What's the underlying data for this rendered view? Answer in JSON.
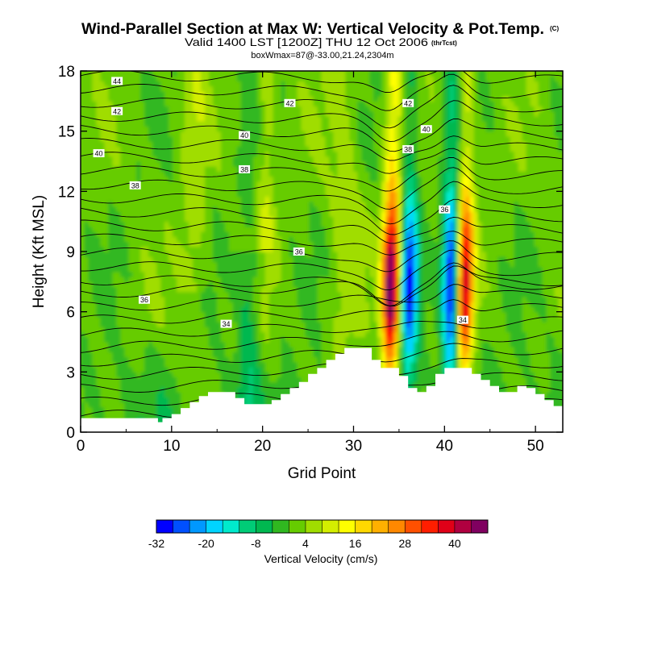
{
  "chart_data": {
    "type": "contour",
    "title": "Wind-Parallel Section at Max W: Vertical Velocity & Pot.Temp.",
    "copyright": "(C)",
    "subtitle": "Valid 1400 LST [1200Z] THU 12 Oct 2006",
    "subtitle_tag": "(thrTcst)",
    "subtitle2": "boxWmax=87@-33.00,21.24,2304m",
    "xlabel": "Grid Point",
    "ylabel": "Height (Kft MSL)",
    "xlim": [
      0,
      53
    ],
    "ylim": [
      0,
      18
    ],
    "xticks": [
      0,
      10,
      20,
      30,
      40,
      50
    ],
    "yticks": [
      0,
      3,
      6,
      9,
      12,
      15,
      18
    ],
    "colorbar": {
      "label": "Vertical Velocity (cm/s)",
      "levels": [
        -32,
        -28,
        -24,
        -20,
        -16,
        -12,
        -8,
        -4,
        0,
        4,
        8,
        12,
        16,
        20,
        24,
        28,
        32,
        36,
        40,
        44,
        48
      ],
      "tick_labels": [
        "-32",
        "-20",
        "-8",
        "4",
        "16",
        "28",
        "40"
      ],
      "tick_values": [
        -32,
        -20,
        -8,
        4,
        16,
        28,
        40
      ],
      "colors": [
        "#0000ff",
        "#0050ff",
        "#0098ff",
        "#00d4ff",
        "#00eacc",
        "#00cc77",
        "#00b850",
        "#30b820",
        "#66cc00",
        "#a0dd00",
        "#d4ee00",
        "#ffff00",
        "#ffd800",
        "#ffb000",
        "#ff8800",
        "#ff5000",
        "#ff1e00",
        "#e00018",
        "#b00040",
        "#800060"
      ]
    },
    "vertical_velocity_features": [
      {
        "name": "updraft",
        "x": 34.2,
        "top": 18,
        "bottom": 3.2,
        "peak_w": 44
      },
      {
        "name": "downdraft",
        "x": 36.2,
        "top": 18,
        "bottom": 6,
        "min_w": -28
      },
      {
        "name": "updraft",
        "x": 42.3,
        "top": 18,
        "bottom": 6,
        "peak_w": 36
      },
      {
        "name": "downdraft",
        "x": 40.8,
        "top": 18,
        "bottom": 3.2,
        "min_w": -32
      }
    ],
    "isentrope_labels": [
      {
        "value": "44",
        "x": 4,
        "y": 17.5
      },
      {
        "value": "42",
        "x": 4,
        "y": 16
      },
      {
        "value": "42",
        "x": 23,
        "y": 16.4
      },
      {
        "value": "42",
        "x": 36,
        "y": 16.4
      },
      {
        "value": "40",
        "x": 2,
        "y": 13.9
      },
      {
        "value": "40",
        "x": 18,
        "y": 14.8
      },
      {
        "value": "40",
        "x": 38,
        "y": 15.1
      },
      {
        "value": "38",
        "x": 6,
        "y": 12.3
      },
      {
        "value": "38",
        "x": 18,
        "y": 13.1
      },
      {
        "value": "38",
        "x": 36,
        "y": 14.1
      },
      {
        "value": "36",
        "x": 40,
        "y": 11.1
      },
      {
        "value": "36",
        "x": 24,
        "y": 9
      },
      {
        "value": "36",
        "x": 7,
        "y": 6.6
      },
      {
        "value": "34",
        "x": 16,
        "y": 5.4
      },
      {
        "value": "34",
        "x": 42,
        "y": 5.6
      }
    ],
    "terrain": [
      [
        0,
        0.7
      ],
      [
        1,
        0.7
      ],
      [
        8,
        0.7
      ],
      [
        8.5,
        0.5
      ],
      [
        9,
        0.7
      ],
      [
        10,
        0.9
      ],
      [
        11,
        1.2
      ],
      [
        12,
        1.5
      ],
      [
        13,
        1.8
      ],
      [
        14,
        2
      ],
      [
        16,
        2
      ],
      [
        17,
        1.7
      ],
      [
        18,
        1.4
      ],
      [
        20,
        1.4
      ],
      [
        21,
        1.6
      ],
      [
        22,
        1.9
      ],
      [
        23,
        2.2
      ],
      [
        24,
        2.5
      ],
      [
        25,
        2.9
      ],
      [
        26,
        3.2
      ],
      [
        27,
        3.6
      ],
      [
        28,
        3.9
      ],
      [
        29,
        4.2
      ],
      [
        31,
        4.2
      ],
      [
        32,
        3.6
      ],
      [
        33,
        3.2
      ],
      [
        34,
        3.2
      ],
      [
        35,
        2.8
      ],
      [
        36,
        2.2
      ],
      [
        37,
        2
      ],
      [
        38,
        2.3
      ],
      [
        39,
        2.9
      ],
      [
        40,
        3.2
      ],
      [
        42,
        3.2
      ],
      [
        43,
        2.9
      ],
      [
        44,
        2.6
      ],
      [
        45,
        2.3
      ],
      [
        46,
        2
      ],
      [
        47,
        2
      ],
      [
        48,
        2.3
      ],
      [
        49,
        2.2
      ],
      [
        50,
        1.9
      ],
      [
        51,
        1.6
      ],
      [
        52,
        1.3
      ],
      [
        53,
        1
      ]
    ]
  }
}
